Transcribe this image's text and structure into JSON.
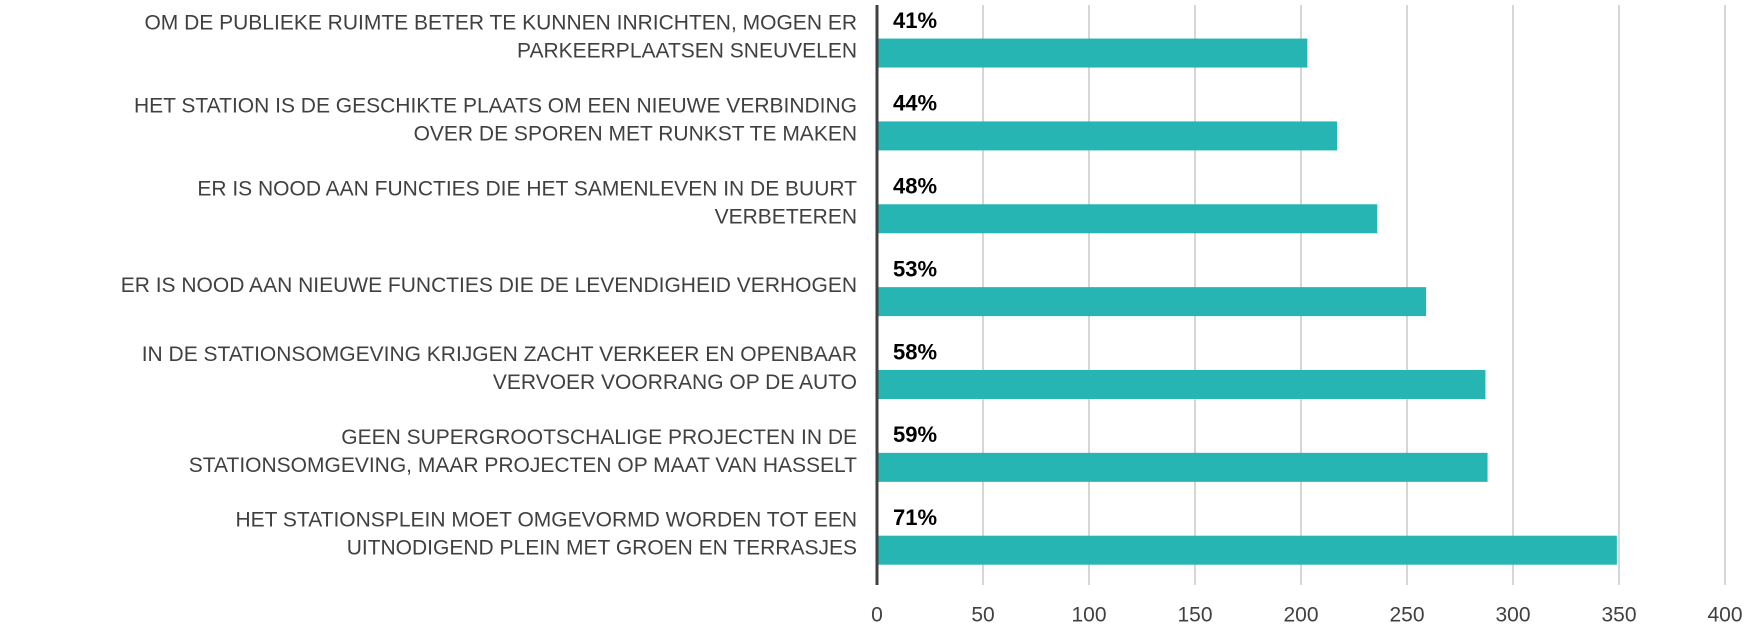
{
  "chart_data": {
    "type": "barh",
    "categories": [
      [
        "OM DE PUBLIEKE RUIMTE BETER TE KUNNEN INRICHTEN, MOGEN ER",
        "PARKEERPLAATSEN SNEUVELEN"
      ],
      [
        "HET STATION IS DE GESCHIKTE PLAATS OM EEN NIEUWE VERBINDING",
        "OVER DE SPOREN MET RUNKST TE MAKEN"
      ],
      [
        "ER IS NOOD AAN FUNCTIES DIE HET SAMENLEVEN IN DE BUURT",
        "VERBETEREN"
      ],
      [
        "ER IS NOOD AAN NIEUWE FUNCTIES DIE DE LEVENDIGHEID VERHOGEN"
      ],
      [
        "IN DE STATIONSOMGEVING KRIJGEN ZACHT VERKEER EN OPENBAAR",
        "VERVOER VOORRANG OP DE AUTO"
      ],
      [
        "GEEN SUPERGROOTSCHALIGE PROJECTEN IN DE",
        "STATIONSOMGEVING, MAAR PROJECTEN OP MAAT VAN HASSELT"
      ],
      [
        "HET STATIONSPLEIN MOET OMGEVORMD WORDEN TOT EEN",
        "UITNODIGEND PLEIN MET GROEN EN TERRASJES"
      ]
    ],
    "values": [
      203,
      217,
      236,
      259,
      287,
      288,
      349
    ],
    "annotations": [
      "41%",
      "44%",
      "48%",
      "53%",
      "58%",
      "59%",
      "71%"
    ],
    "color": "#26b5b3",
    "xlim": [
      0,
      400
    ],
    "xticks": [
      0,
      50,
      100,
      150,
      200,
      250,
      300,
      350,
      400
    ],
    "grid": true
  }
}
